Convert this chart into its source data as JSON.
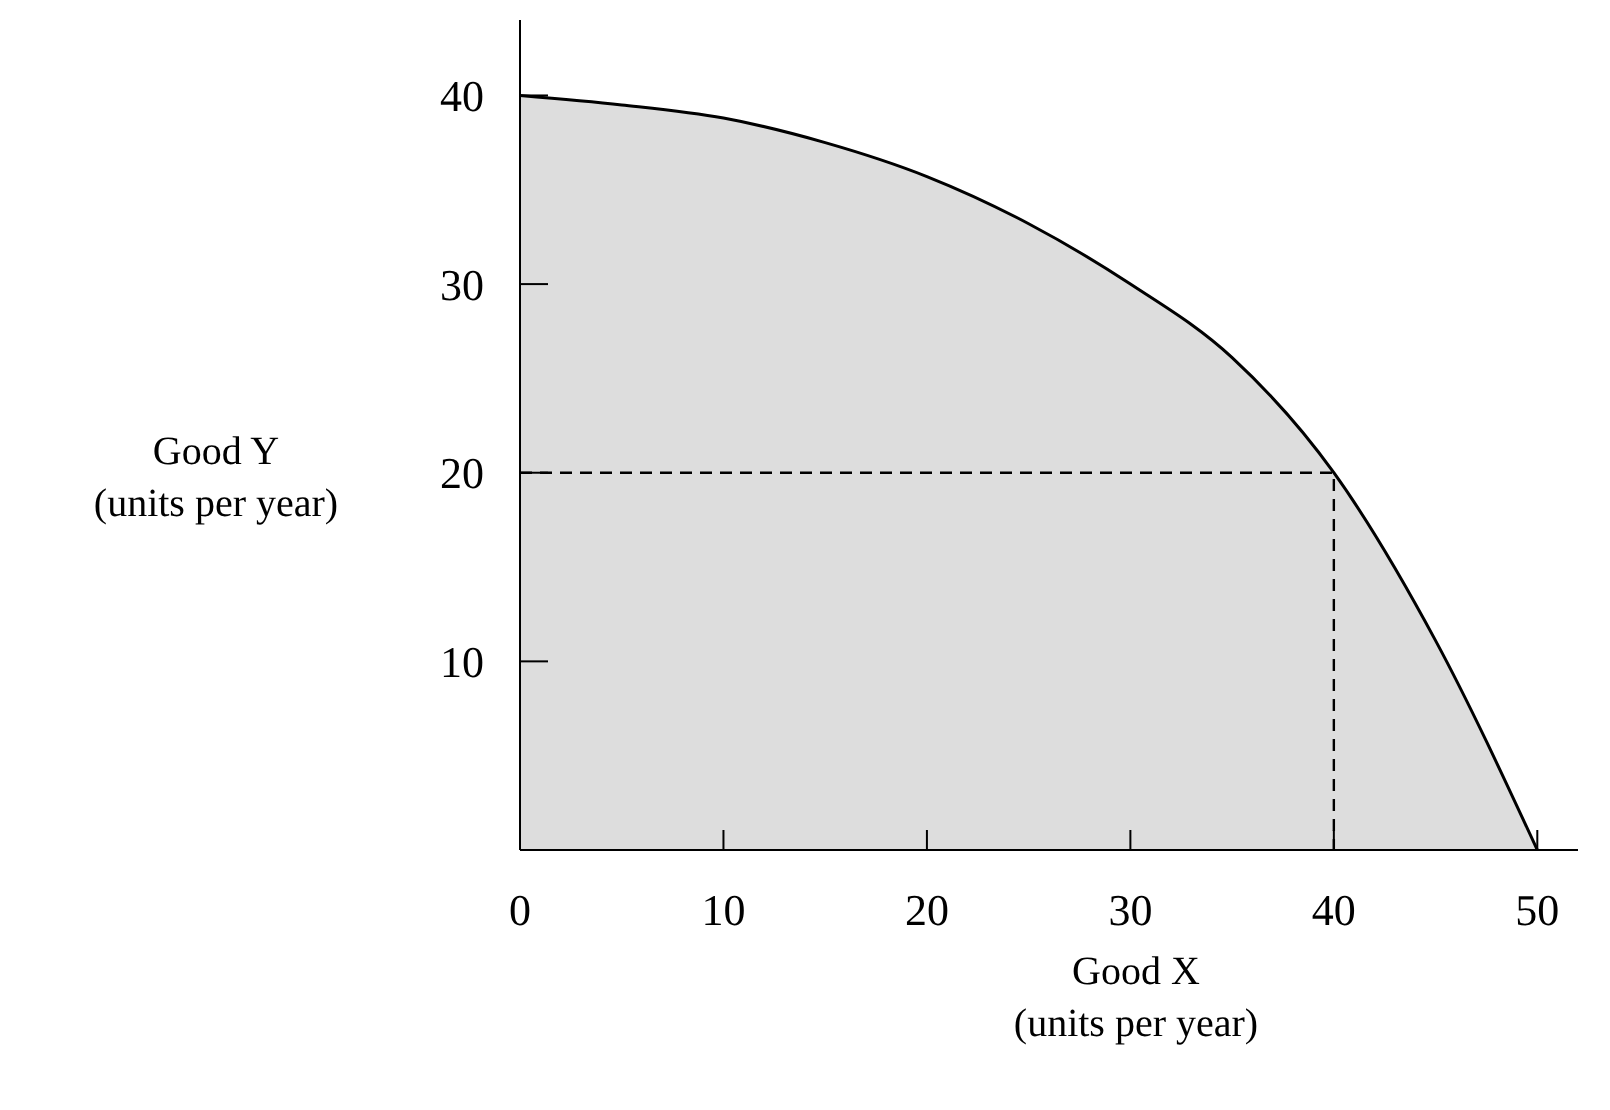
{
  "chart_data": {
    "type": "area",
    "xlabel": "Good X (units per year)",
    "ylabel": "Good Y (units per year)",
    "xlim": [
      0,
      52
    ],
    "ylim": [
      0,
      44
    ],
    "xticks": [
      0,
      10,
      20,
      30,
      40,
      50
    ],
    "yticks": [
      10,
      20,
      30,
      40
    ],
    "marker": "none",
    "series": [
      {
        "color": "#dddddd",
        "x": [
          0,
          5,
          10,
          15,
          20,
          25,
          30,
          35,
          40,
          45,
          50
        ],
        "values": [
          40,
          39.5,
          38.8,
          37.5,
          35.7,
          33.2,
          30,
          26.1,
          20,
          11.1,
          0
        ]
      },
      {
        "type": "line",
        "color": "#000000",
        "line_style": "dashed",
        "x": [
          0,
          40,
          40
        ],
        "values": [
          20,
          20,
          0
        ]
      }
    ]
  }
}
